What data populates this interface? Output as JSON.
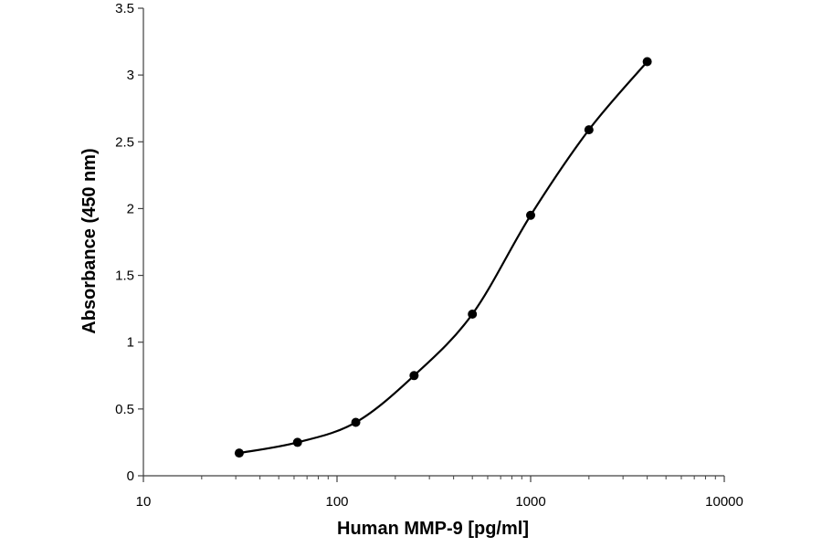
{
  "chart_data": {
    "type": "scatter",
    "title": "",
    "xlabel": "Human MMP-9 [pg/ml]",
    "ylabel": "Absorbance (450 nm)",
    "x_scale": "log",
    "xlim": [
      10,
      10000
    ],
    "ylim": [
      0,
      3.5
    ],
    "x_ticks": [
      10,
      100,
      1000,
      10000
    ],
    "y_ticks": [
      0,
      0.5,
      1,
      1.5,
      2,
      2.5,
      3,
      3.5
    ],
    "x_tick_labels": [
      "10",
      "100",
      "1000",
      "10000"
    ],
    "y_tick_labels": [
      "0",
      "0.5",
      "1",
      "1.5",
      "2",
      "2.5",
      "3",
      "3.5"
    ],
    "grid": false,
    "legend": "none",
    "smooth_line": true,
    "series": [
      {
        "x": [
          31.25,
          62.5,
          125,
          250,
          500,
          1000,
          2000,
          4000
        ],
        "y": [
          0.17,
          0.25,
          0.4,
          0.75,
          1.21,
          1.95,
          2.59,
          3.1
        ],
        "color": "#000000"
      }
    ]
  }
}
